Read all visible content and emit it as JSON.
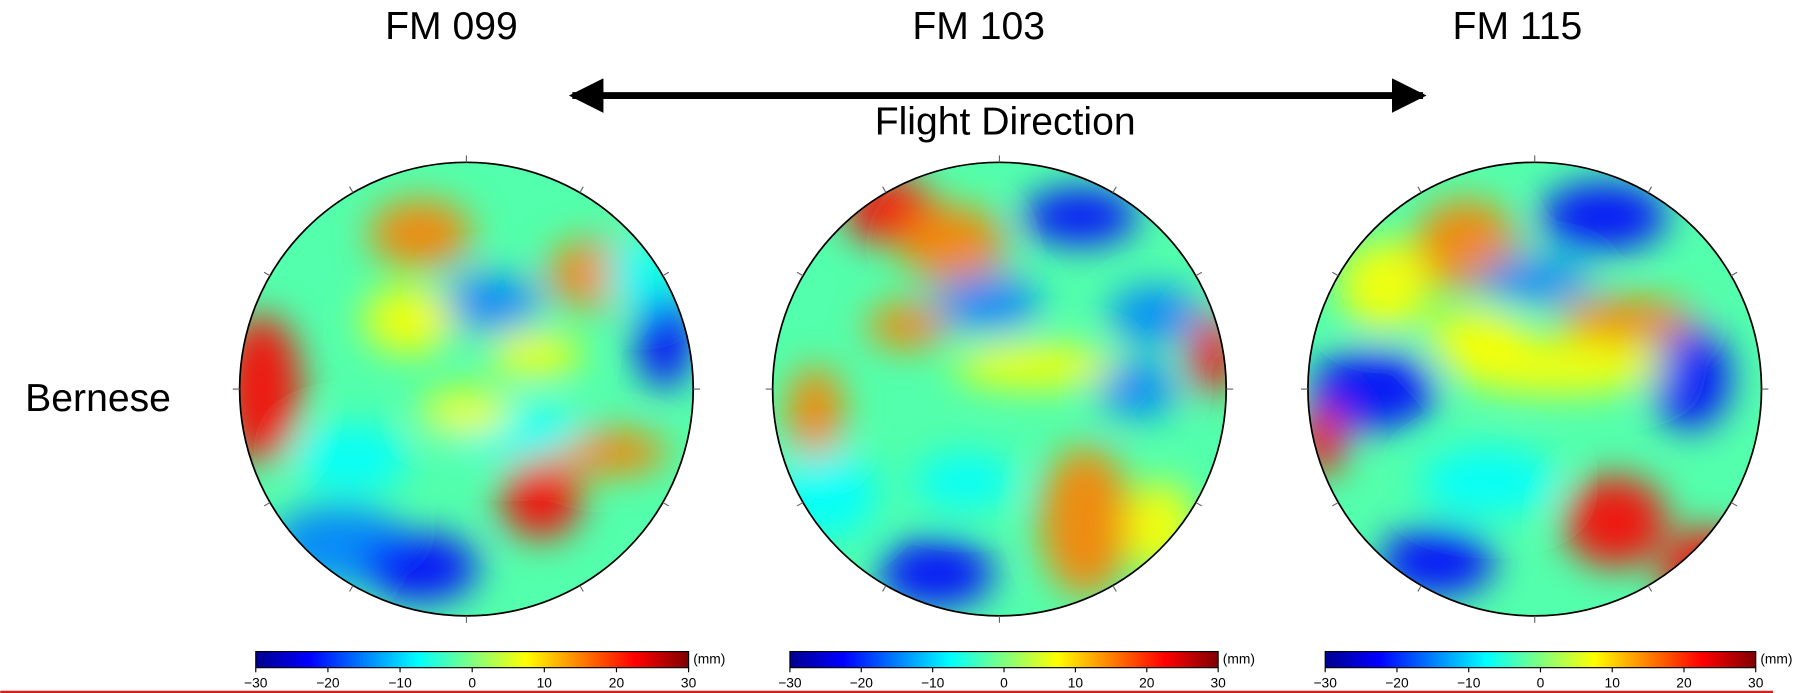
{
  "row_label": "Bernese",
  "flight_direction": "Flight Direction",
  "colormap": [
    "#00008f",
    "#0000ff",
    "#0080ff",
    "#00ffff",
    "#80ff80",
    "#ffff00",
    "#ff8000",
    "#ff0000",
    "#800000"
  ],
  "panels": [
    {
      "title": "FM 099",
      "colorbar": {
        "unit": "(mm)",
        "lim": [
          -30,
          30
        ],
        "ticks": [
          {
            "value": -30,
            "label": "−30"
          },
          {
            "value": -20,
            "label": "−20"
          },
          {
            "value": -10,
            "label": "−10"
          },
          0,
          10,
          20,
          30
        ]
      }
    },
    {
      "title": "FM 103",
      "colorbar": {
        "unit": "(mm)",
        "lim": [
          -30,
          30
        ],
        "ticks": [
          {
            "value": -30,
            "label": "−30"
          },
          {
            "value": -20,
            "label": "−20"
          },
          {
            "value": -10,
            "label": "−10"
          },
          0,
          10,
          20,
          30
        ]
      }
    },
    {
      "title": "FM 115",
      "colorbar": {
        "unit": "(mm)",
        "lim": [
          -30,
          30
        ],
        "ticks": [
          {
            "value": -30,
            "label": "−30"
          },
          {
            "value": -20,
            "label": "−20"
          },
          {
            "value": -10,
            "label": "−10"
          },
          0,
          10,
          20,
          30
        ]
      }
    }
  ]
}
